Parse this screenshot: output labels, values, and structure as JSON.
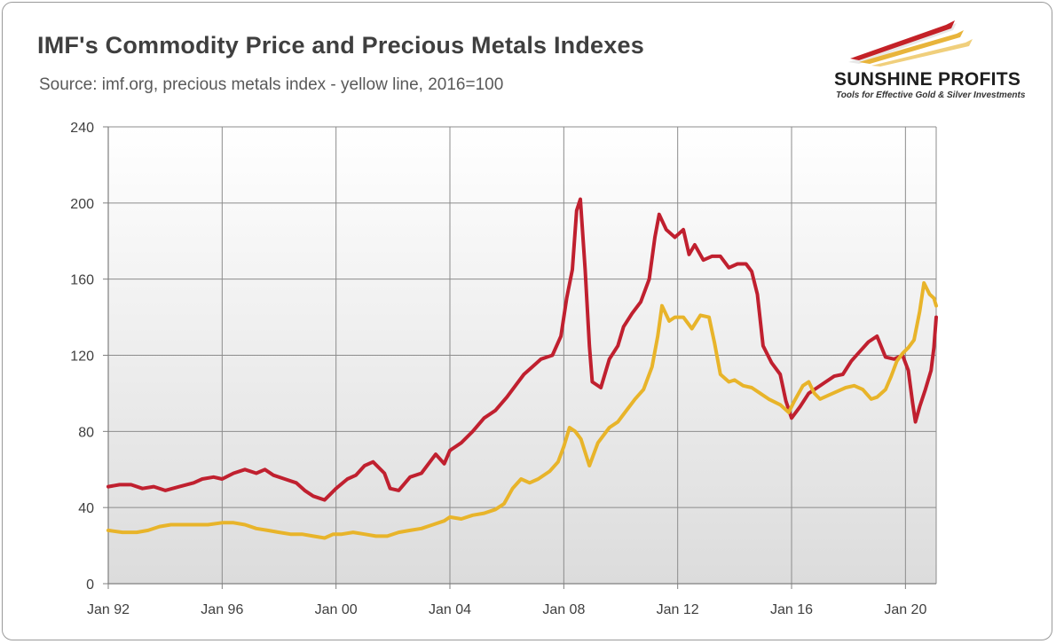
{
  "header": {
    "title": "IMF's Commodity Price and Precious Metals Indexes",
    "subtitle": "Source: imf.org, precious metals index - yellow line, 2016=100"
  },
  "logo": {
    "name": "SUNSHINE PROFITS",
    "tagline": "Tools for Effective Gold & Silver Investments",
    "colors": {
      "red": "#c42127",
      "gold": "#e8b43a",
      "dark": "#2a2a2a"
    }
  },
  "chart_data": {
    "type": "line",
    "title": "IMF's Commodity Price and Precious Metals Indexes",
    "subtitle": "Source: imf.org, precious metals index - yellow line, 2016=100",
    "xlabel": "",
    "ylabel": "",
    "xlim": [
      1992.0,
      2021.08
    ],
    "ylim": [
      0,
      240
    ],
    "y_ticks": [
      0,
      40,
      80,
      120,
      160,
      200,
      240
    ],
    "x_ticks": [
      {
        "label": "Jan 92",
        "x": 1992.0
      },
      {
        "label": "Jan 96",
        "x": 1996.0
      },
      {
        "label": "Jan 00",
        "x": 2000.0
      },
      {
        "label": "Jan 04",
        "x": 2004.0
      },
      {
        "label": "Jan 08",
        "x": 2008.0
      },
      {
        "label": "Jan 12",
        "x": 2012.0
      },
      {
        "label": "Jan 16",
        "x": 2016.0
      },
      {
        "label": "Jan 20",
        "x": 2020.0
      }
    ],
    "grid": true,
    "legend": "none",
    "series": [
      {
        "color": "#c0202f",
        "points": [
          [
            1992.0,
            51
          ],
          [
            1992.4,
            52
          ],
          [
            1992.8,
            52
          ],
          [
            1993.2,
            50
          ],
          [
            1993.6,
            51
          ],
          [
            1994.0,
            49
          ],
          [
            1994.5,
            51
          ],
          [
            1995.0,
            53
          ],
          [
            1995.3,
            55
          ],
          [
            1995.7,
            56
          ],
          [
            1996.0,
            55
          ],
          [
            1996.4,
            58
          ],
          [
            1996.8,
            60
          ],
          [
            1997.2,
            58
          ],
          [
            1997.5,
            60
          ],
          [
            1997.8,
            57
          ],
          [
            1998.2,
            55
          ],
          [
            1998.6,
            53
          ],
          [
            1998.9,
            49
          ],
          [
            1999.2,
            46
          ],
          [
            1999.6,
            44
          ],
          [
            2000.0,
            50
          ],
          [
            2000.4,
            55
          ],
          [
            2000.7,
            57
          ],
          [
            2001.0,
            62
          ],
          [
            2001.3,
            64
          ],
          [
            2001.7,
            58
          ],
          [
            2001.9,
            50
          ],
          [
            2002.2,
            49
          ],
          [
            2002.6,
            56
          ],
          [
            2003.0,
            58
          ],
          [
            2003.3,
            64
          ],
          [
            2003.5,
            68
          ],
          [
            2003.8,
            63
          ],
          [
            2004.0,
            70
          ],
          [
            2004.4,
            74
          ],
          [
            2004.8,
            80
          ],
          [
            2005.2,
            87
          ],
          [
            2005.6,
            91
          ],
          [
            2006.0,
            98
          ],
          [
            2006.3,
            104
          ],
          [
            2006.6,
            110
          ],
          [
            2006.9,
            114
          ],
          [
            2007.2,
            118
          ],
          [
            2007.6,
            120
          ],
          [
            2007.9,
            130
          ],
          [
            2008.1,
            150
          ],
          [
            2008.3,
            165
          ],
          [
            2008.45,
            196
          ],
          [
            2008.58,
            202
          ],
          [
            2008.75,
            165
          ],
          [
            2008.9,
            125
          ],
          [
            2009.0,
            106
          ],
          [
            2009.3,
            103
          ],
          [
            2009.6,
            118
          ],
          [
            2009.9,
            125
          ],
          [
            2010.1,
            135
          ],
          [
            2010.4,
            142
          ],
          [
            2010.7,
            148
          ],
          [
            2011.0,
            160
          ],
          [
            2011.2,
            182
          ],
          [
            2011.35,
            194
          ],
          [
            2011.6,
            186
          ],
          [
            2011.9,
            182
          ],
          [
            2012.2,
            186
          ],
          [
            2012.4,
            173
          ],
          [
            2012.6,
            178
          ],
          [
            2012.9,
            170
          ],
          [
            2013.2,
            172
          ],
          [
            2013.5,
            172
          ],
          [
            2013.8,
            166
          ],
          [
            2014.1,
            168
          ],
          [
            2014.4,
            168
          ],
          [
            2014.6,
            164
          ],
          [
            2014.8,
            152
          ],
          [
            2015.0,
            125
          ],
          [
            2015.3,
            116
          ],
          [
            2015.6,
            110
          ],
          [
            2015.8,
            96
          ],
          [
            2016.0,
            87
          ],
          [
            2016.3,
            93
          ],
          [
            2016.6,
            100
          ],
          [
            2016.9,
            103
          ],
          [
            2017.2,
            106
          ],
          [
            2017.5,
            109
          ],
          [
            2017.8,
            110
          ],
          [
            2018.1,
            117
          ],
          [
            2018.4,
            122
          ],
          [
            2018.7,
            127
          ],
          [
            2019.0,
            130
          ],
          [
            2019.3,
            119
          ],
          [
            2019.6,
            118
          ],
          [
            2019.9,
            120
          ],
          [
            2020.1,
            112
          ],
          [
            2020.25,
            95
          ],
          [
            2020.35,
            85
          ],
          [
            2020.5,
            93
          ],
          [
            2020.7,
            102
          ],
          [
            2020.9,
            112
          ],
          [
            2021.0,
            124
          ],
          [
            2021.08,
            140
          ]
        ]
      },
      {
        "color": "#e8b42a",
        "points": [
          [
            1992.0,
            28
          ],
          [
            1992.5,
            27
          ],
          [
            1993.0,
            27
          ],
          [
            1993.4,
            28
          ],
          [
            1993.8,
            30
          ],
          [
            1994.2,
            31
          ],
          [
            1994.6,
            31
          ],
          [
            1995.0,
            31
          ],
          [
            1995.5,
            31
          ],
          [
            1996.0,
            32
          ],
          [
            1996.4,
            32
          ],
          [
            1996.8,
            31
          ],
          [
            1997.2,
            29
          ],
          [
            1997.6,
            28
          ],
          [
            1998.0,
            27
          ],
          [
            1998.4,
            26
          ],
          [
            1998.8,
            26
          ],
          [
            1999.2,
            25
          ],
          [
            1999.6,
            24
          ],
          [
            1999.9,
            26
          ],
          [
            2000.2,
            26
          ],
          [
            2000.6,
            27
          ],
          [
            2001.0,
            26
          ],
          [
            2001.4,
            25
          ],
          [
            2001.8,
            25
          ],
          [
            2002.2,
            27
          ],
          [
            2002.6,
            28
          ],
          [
            2003.0,
            29
          ],
          [
            2003.4,
            31
          ],
          [
            2003.8,
            33
          ],
          [
            2004.0,
            35
          ],
          [
            2004.4,
            34
          ],
          [
            2004.8,
            36
          ],
          [
            2005.2,
            37
          ],
          [
            2005.6,
            39
          ],
          [
            2005.9,
            42
          ],
          [
            2006.2,
            50
          ],
          [
            2006.5,
            55
          ],
          [
            2006.8,
            53
          ],
          [
            2007.1,
            55
          ],
          [
            2007.5,
            59
          ],
          [
            2007.8,
            64
          ],
          [
            2008.0,
            72
          ],
          [
            2008.2,
            82
          ],
          [
            2008.4,
            80
          ],
          [
            2008.6,
            76
          ],
          [
            2008.9,
            62
          ],
          [
            2009.2,
            74
          ],
          [
            2009.6,
            82
          ],
          [
            2009.9,
            85
          ],
          [
            2010.1,
            89
          ],
          [
            2010.5,
            97
          ],
          [
            2010.8,
            102
          ],
          [
            2011.1,
            114
          ],
          [
            2011.3,
            130
          ],
          [
            2011.45,
            146
          ],
          [
            2011.7,
            138
          ],
          [
            2011.9,
            140
          ],
          [
            2012.2,
            140
          ],
          [
            2012.5,
            134
          ],
          [
            2012.8,
            141
          ],
          [
            2013.1,
            140
          ],
          [
            2013.3,
            126
          ],
          [
            2013.5,
            110
          ],
          [
            2013.8,
            106
          ],
          [
            2014.0,
            107
          ],
          [
            2014.3,
            104
          ],
          [
            2014.6,
            103
          ],
          [
            2014.9,
            100
          ],
          [
            2015.2,
            97
          ],
          [
            2015.6,
            94
          ],
          [
            2015.9,
            90
          ],
          [
            2016.1,
            96
          ],
          [
            2016.4,
            104
          ],
          [
            2016.6,
            106
          ],
          [
            2016.8,
            100
          ],
          [
            2017.0,
            97
          ],
          [
            2017.3,
            99
          ],
          [
            2017.6,
            101
          ],
          [
            2017.9,
            103
          ],
          [
            2018.2,
            104
          ],
          [
            2018.5,
            102
          ],
          [
            2018.8,
            97
          ],
          [
            2019.0,
            98
          ],
          [
            2019.3,
            102
          ],
          [
            2019.5,
            109
          ],
          [
            2019.7,
            117
          ],
          [
            2019.9,
            121
          ],
          [
            2020.1,
            124
          ],
          [
            2020.3,
            128
          ],
          [
            2020.5,
            143
          ],
          [
            2020.65,
            158
          ],
          [
            2020.85,
            152
          ],
          [
            2021.0,
            150
          ],
          [
            2021.08,
            146
          ]
        ]
      }
    ]
  }
}
